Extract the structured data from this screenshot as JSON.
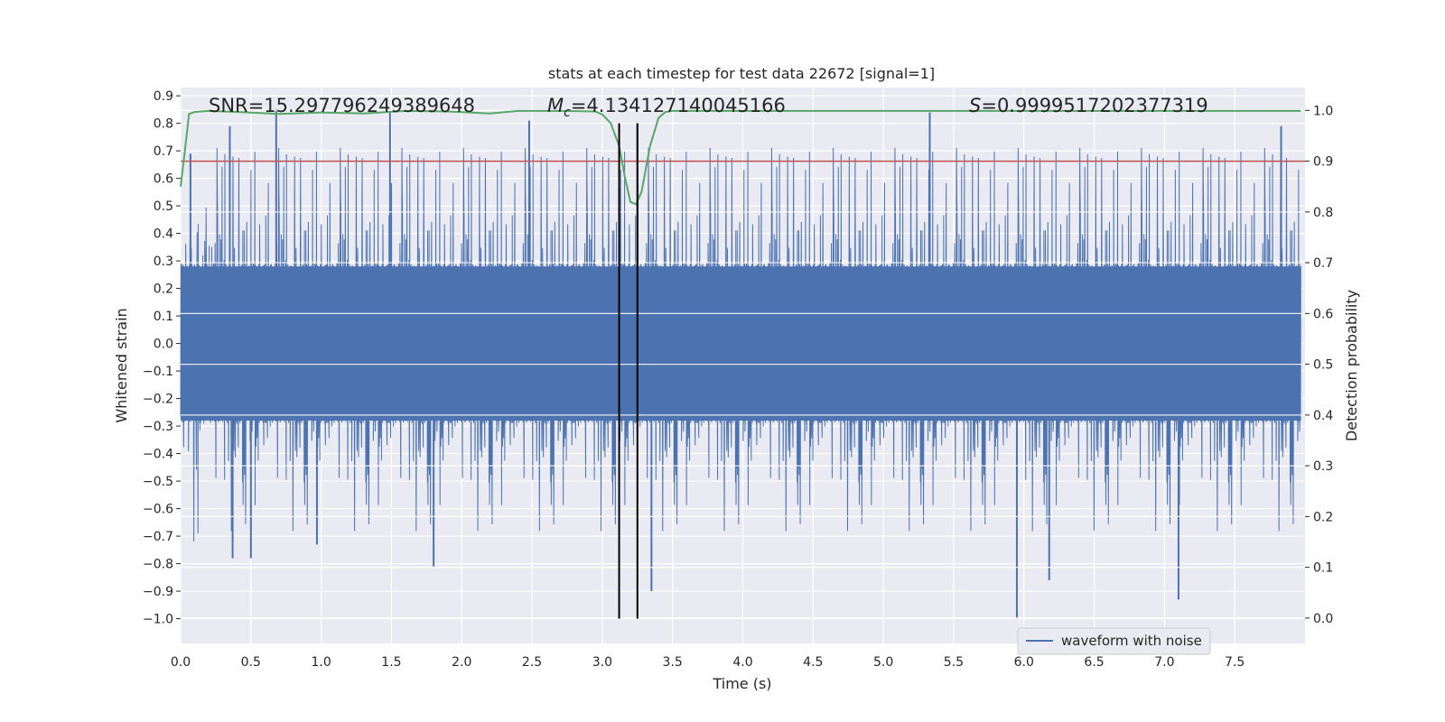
{
  "chart_data": {
    "type": "line",
    "title": "stats at each timestep for test data 22672 [signal=1]",
    "xlabel": "Time (s)",
    "ylabel": "Whitened strain",
    "ylabel_right": "Detection probability",
    "xlim": [
      0,
      8
    ],
    "ylim": [
      -1.09,
      0.93
    ],
    "ylim_right": [
      -0.05,
      1.045
    ],
    "x_ticks": [
      0.0,
      0.5,
      1.0,
      1.5,
      2.0,
      2.5,
      3.0,
      3.5,
      4.0,
      4.5,
      5.0,
      5.5,
      6.0,
      6.5,
      7.0,
      7.5
    ],
    "x_tick_labels": [
      "0.0",
      "0.5",
      "1.0",
      "1.5",
      "2.0",
      "2.5",
      "3.0",
      "3.5",
      "4.0",
      "4.5",
      "5.0",
      "5.5",
      "6.0",
      "6.5",
      "7.0",
      "7.5"
    ],
    "y_ticks": [
      0.9,
      0.8,
      0.7,
      0.6,
      0.5,
      0.4,
      0.3,
      0.2,
      0.1,
      0.0,
      -0.1,
      -0.2,
      -0.3,
      -0.4,
      -0.5,
      -0.6,
      -0.7,
      -0.8,
      -0.9,
      -1.0
    ],
    "y_tick_labels": [
      "0.9",
      "0.8",
      "0.7",
      "0.6",
      "0.5",
      "0.4",
      "0.3",
      "0.2",
      "0.1",
      "0.0",
      "−0.1",
      "−0.2",
      "−0.3",
      "−0.4",
      "−0.5",
      "−0.6",
      "−0.7",
      "−0.8",
      "−0.9",
      "−1.0"
    ],
    "y_ticks_right": [
      1.0,
      0.9,
      0.8,
      0.7,
      0.6,
      0.5,
      0.4,
      0.3,
      0.2,
      0.1,
      0.0
    ],
    "y_tick_labels_right": [
      "1.0",
      "0.9",
      "0.8",
      "0.7",
      "0.6",
      "0.5",
      "0.4",
      "0.3",
      "0.2",
      "0.1",
      "0.0"
    ],
    "series": [
      {
        "name": "waveform with noise",
        "axis": "left",
        "color": "#4c72b0",
        "kind": "noise-envelope",
        "samples": 4000,
        "band": 0.29,
        "extreme_min": -1.0,
        "extreme_max": 0.85,
        "peaks": [
          {
            "x": 0.07,
            "y": 0.69
          },
          {
            "x": 0.35,
            "y": 0.79
          },
          {
            "x": 0.37,
            "y": -0.78
          },
          {
            "x": 0.5,
            "y": -0.78
          },
          {
            "x": 0.68,
            "y": 0.85
          },
          {
            "x": 0.97,
            "y": -0.73
          },
          {
            "x": 1.49,
            "y": 0.84
          },
          {
            "x": 1.8,
            "y": -0.81
          },
          {
            "x": 2.48,
            "y": 0.81
          },
          {
            "x": 3.25,
            "y": 0.8
          },
          {
            "x": 3.35,
            "y": -0.9
          },
          {
            "x": 5.33,
            "y": 0.84
          },
          {
            "x": 5.95,
            "y": -1.0
          },
          {
            "x": 6.18,
            "y": -0.86
          },
          {
            "x": 7.1,
            "y": -0.93
          },
          {
            "x": 7.83,
            "y": 0.79
          }
        ]
      },
      {
        "name": "detection probability",
        "axis": "right",
        "color": "#55a868",
        "x": [
          0.0,
          0.03,
          0.06,
          0.1,
          0.2,
          0.4,
          0.7,
          1.0,
          1.3,
          1.6,
          1.9,
          2.2,
          2.4,
          2.7,
          2.95,
          3.0,
          3.06,
          3.12,
          3.16,
          3.2,
          3.24,
          3.28,
          3.34,
          3.4,
          3.45,
          3.5,
          3.8,
          4.5,
          5.5,
          6.5,
          7.5,
          7.97
        ],
        "y": [
          0.85,
          0.92,
          0.993,
          0.997,
          0.999,
          0.997,
          0.993,
          0.996,
          0.994,
          0.999,
          0.998,
          0.994,
          0.999,
          0.999,
          0.998,
          0.992,
          0.975,
          0.93,
          0.87,
          0.82,
          0.815,
          0.84,
          0.93,
          0.985,
          0.997,
          0.999,
          0.999,
          0.999,
          0.999,
          0.999,
          0.999,
          0.999
        ]
      }
    ],
    "threshold": {
      "axis": "right",
      "value": 0.9,
      "color": "#c44e52"
    },
    "markers": [
      {
        "x": 3.12
      },
      {
        "x": 3.25
      }
    ],
    "annotations": [
      {
        "key": "snr",
        "text": "SNR=15.297796249389648"
      },
      {
        "key": "mc",
        "text": "=4.134127140045166",
        "symbol": "M",
        "subscript": "c"
      },
      {
        "key": "s",
        "text": "=0.9999517202377319",
        "symbol": "S"
      }
    ],
    "legend": {
      "label": "waveform with noise",
      "position": "lower-right"
    },
    "grid": true,
    "background": "#eaeaf2"
  }
}
